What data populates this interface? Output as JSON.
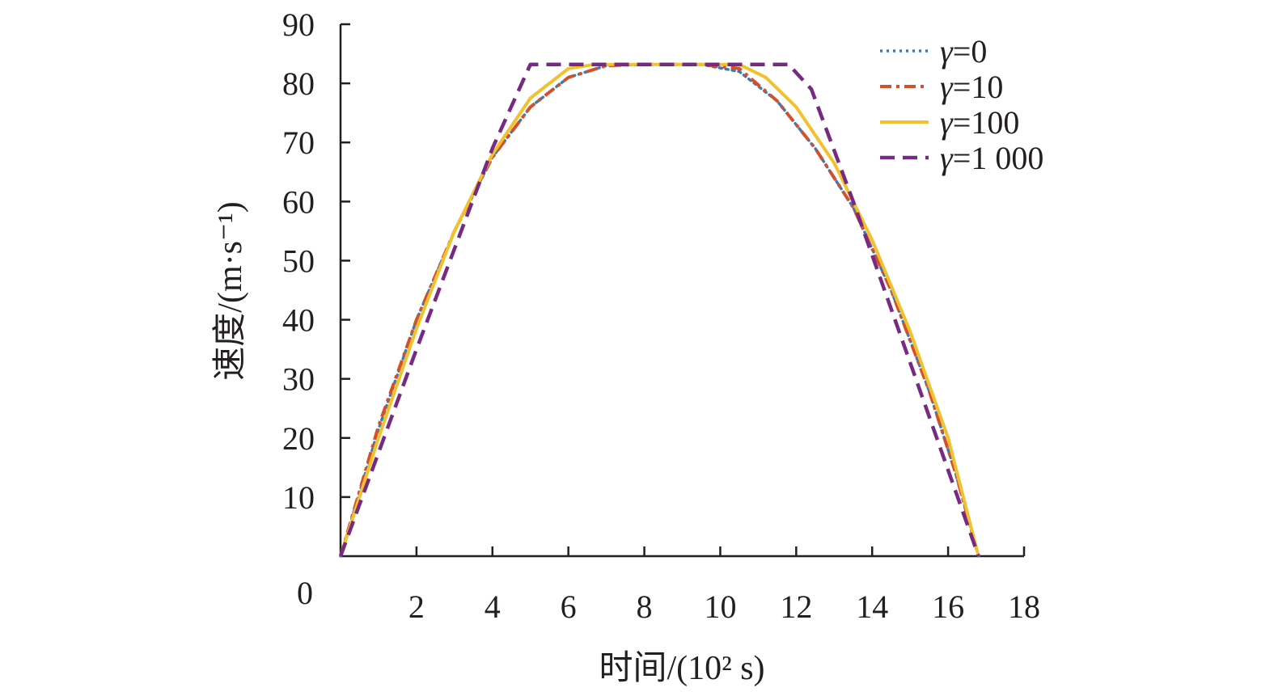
{
  "chart_data": {
    "type": "line",
    "xlabel": "时间/(10² s)",
    "ylabel": "速度/(m·s⁻¹)",
    "xlim": [
      0,
      18
    ],
    "ylim": [
      0,
      90
    ],
    "x_ticks": [
      "2",
      "4",
      "6",
      "8",
      "10",
      "12",
      "14",
      "16",
      "18"
    ],
    "y_ticks": [
      "10",
      "20",
      "30",
      "40",
      "50",
      "60",
      "70",
      "80",
      "90"
    ],
    "origin_label": "0",
    "grid": false,
    "legend_position": "top-right",
    "series": [
      {
        "name": "γ=0",
        "legend_symbol": "γ",
        "legend_value": "=0",
        "color": "#3b7ab5",
        "style": "dotted",
        "points": [
          [
            0,
            0
          ],
          [
            1,
            21.5
          ],
          [
            2,
            40
          ],
          [
            3,
            55
          ],
          [
            4,
            67.5
          ],
          [
            5,
            76
          ],
          [
            6,
            81
          ],
          [
            7,
            83
          ],
          [
            8,
            83.2
          ],
          [
            9.5,
            83.2
          ],
          [
            10.5,
            82
          ],
          [
            11.5,
            77
          ],
          [
            12.5,
            69
          ],
          [
            13.5,
            59
          ],
          [
            14.5,
            45
          ],
          [
            15.5,
            28
          ],
          [
            16.2,
            14
          ],
          [
            16.8,
            0
          ]
        ]
      },
      {
        "name": "γ=10",
        "legend_symbol": "γ",
        "legend_value": "=10",
        "color": "#d4502a",
        "style": "dashdot",
        "points": [
          [
            0,
            0
          ],
          [
            1,
            22
          ],
          [
            2,
            40
          ],
          [
            3,
            55
          ],
          [
            4,
            67.5
          ],
          [
            5,
            76
          ],
          [
            6,
            81
          ],
          [
            7,
            83
          ],
          [
            8,
            83.2
          ],
          [
            9.5,
            83.2
          ],
          [
            10.5,
            82.5
          ],
          [
            11.5,
            77
          ],
          [
            12.5,
            69
          ],
          [
            13.5,
            59
          ],
          [
            14.5,
            45
          ],
          [
            15.5,
            28
          ],
          [
            16.2,
            14
          ],
          [
            16.8,
            0
          ]
        ]
      },
      {
        "name": "γ=100",
        "legend_symbol": "γ",
        "legend_value": "=100",
        "color": "#f2c12e",
        "style": "solid",
        "points": [
          [
            0,
            0
          ],
          [
            1,
            20
          ],
          [
            2,
            38.5
          ],
          [
            3,
            55
          ],
          [
            4,
            68
          ],
          [
            5,
            77.5
          ],
          [
            6,
            82.5
          ],
          [
            6.7,
            83.2
          ],
          [
            10.5,
            83.2
          ],
          [
            11.2,
            81
          ],
          [
            12,
            76
          ],
          [
            13,
            66.5
          ],
          [
            14,
            53.5
          ],
          [
            15,
            38
          ],
          [
            16,
            20
          ],
          [
            16.8,
            0
          ]
        ]
      },
      {
        "name": "γ=1 000",
        "legend_symbol": "γ",
        "legend_value": "=1 000",
        "color": "#762a83",
        "style": "dashed",
        "points": [
          [
            0,
            0
          ],
          [
            2,
            35
          ],
          [
            4,
            69
          ],
          [
            5,
            83.2
          ],
          [
            11.8,
            83.2
          ],
          [
            12.4,
            79
          ],
          [
            13.5,
            60
          ],
          [
            16.8,
            0
          ]
        ]
      }
    ]
  }
}
